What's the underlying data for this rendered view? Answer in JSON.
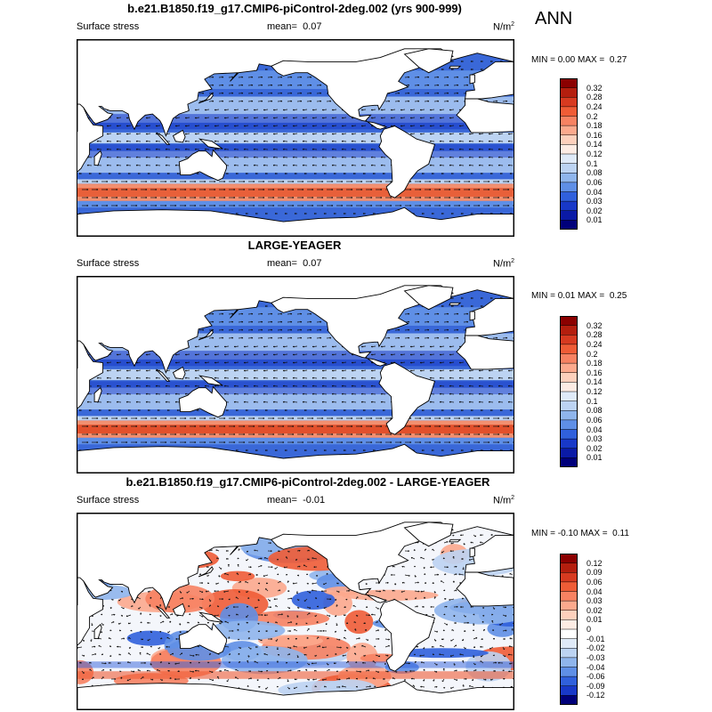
{
  "season": "ANN",
  "panels": [
    {
      "title": "b.e21.B1850.f19_g17.CMIP6-piControl-2deg.002 (yrs 900-999)",
      "field": "Surface stress",
      "mean_label": "mean=",
      "mean": "0.07",
      "units": "N/m",
      "units_exp": "2",
      "min_label": "MIN =",
      "min": "0.00",
      "max_label": "MAX =",
      "max": "0.27",
      "colorbar": {
        "levels": [
          "0.32",
          "0.28",
          "0.24",
          "0.2",
          "0.18",
          "0.16",
          "0.14",
          "0.12",
          "0.1",
          "0.08",
          "0.06",
          "0.04",
          "0.03",
          "0.02",
          "0.01"
        ],
        "colors": [
          "#8b0000",
          "#b41e0e",
          "#d73a20",
          "#ef5c36",
          "#f78262",
          "#fca98d",
          "#fdd0bc",
          "#fdece4",
          "#dfeaf8",
          "#bcd3f2",
          "#8fb5ec",
          "#5f8fe6",
          "#3060dc",
          "#1838c8",
          "#0a1aa6",
          "#00007a"
        ]
      }
    },
    {
      "title": "LARGE-YEAGER",
      "field": "Surface stress",
      "mean_label": "mean=",
      "mean": "0.07",
      "units": "N/m",
      "units_exp": "2",
      "min_label": "MIN =",
      "min": "0.01",
      "max_label": "MAX =",
      "max": "0.25",
      "colorbar": {
        "levels": [
          "0.32",
          "0.28",
          "0.24",
          "0.2",
          "0.18",
          "0.16",
          "0.14",
          "0.12",
          "0.1",
          "0.08",
          "0.06",
          "0.04",
          "0.03",
          "0.02",
          "0.01"
        ],
        "colors": [
          "#8b0000",
          "#b41e0e",
          "#d73a20",
          "#ef5c36",
          "#f78262",
          "#fca98d",
          "#fdd0bc",
          "#fdece4",
          "#dfeaf8",
          "#bcd3f2",
          "#8fb5ec",
          "#5f8fe6",
          "#3060dc",
          "#1838c8",
          "#0a1aa6",
          "#00007a"
        ]
      }
    },
    {
      "title": "b.e21.B1850.f19_g17.CMIP6-piControl-2deg.002 - LARGE-YEAGER",
      "field": "Surface stress",
      "mean_label": "mean=",
      "mean": "-0.01",
      "units": "N/m",
      "units_exp": "2",
      "min_label": "MIN =",
      "min": "-0.10",
      "max_label": "MAX =",
      "max": "0.11",
      "colorbar": {
        "levels": [
          "0.12",
          "0.09",
          "0.06",
          "0.04",
          "0.03",
          "0.02",
          "0.01",
          "0",
          "-0.01",
          "-0.02",
          "-0.03",
          "-0.04",
          "-0.06",
          "-0.09",
          "-0.12"
        ],
        "colors": [
          "#8b0000",
          "#b41e0e",
          "#d73a20",
          "#ef5c36",
          "#f78262",
          "#fca98d",
          "#fdd0bc",
          "#fdece4",
          "#ffffff",
          "#dfeaf8",
          "#bcd3f2",
          "#8fb5ec",
          "#5f8fe6",
          "#3060dc",
          "#1838c8",
          "#00007a"
        ]
      }
    }
  ]
}
